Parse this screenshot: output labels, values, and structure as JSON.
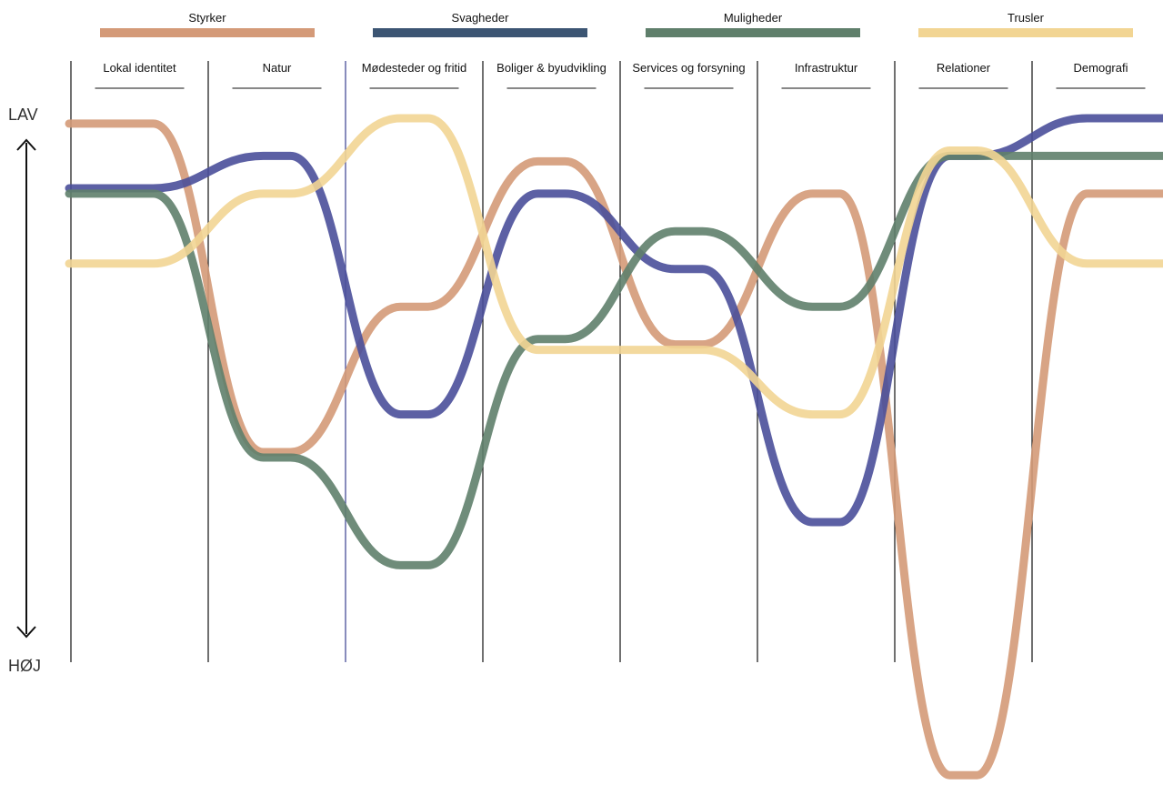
{
  "chart_data": {
    "type": "line",
    "legend_position": "top",
    "grid": false,
    "y_axis": {
      "top_label": "LAV",
      "bottom_label": "HØJ"
    },
    "categories": [
      "Lokal identitet",
      "Natur",
      "Mødesteder og fritid",
      "Boliger & byudvikling",
      "Services og forsyning",
      "Infrastruktur",
      "Relationer",
      "Demografi"
    ],
    "series": [
      {
        "name": "Styrker",
        "color": "#D49A78",
        "values": [
          0.01,
          0.62,
          0.35,
          0.08,
          0.42,
          0.14,
          1.22,
          0.14
        ]
      },
      {
        "name": "Svagheder",
        "color": "#3C5573",
        "line_color": "#4A4F9A",
        "values": [
          0.13,
          0.07,
          0.55,
          0.14,
          0.28,
          0.75,
          0.07,
          0.0
        ]
      },
      {
        "name": "Muligheder",
        "color": "#5F7F6B",
        "values": [
          0.14,
          0.63,
          0.83,
          0.41,
          0.21,
          0.35,
          0.07,
          0.07
        ]
      },
      {
        "name": "Trusler",
        "color": "#F2D593",
        "values": [
          0.27,
          0.14,
          0.0,
          0.43,
          0.43,
          0.55,
          0.06,
          0.27
        ]
      }
    ]
  }
}
